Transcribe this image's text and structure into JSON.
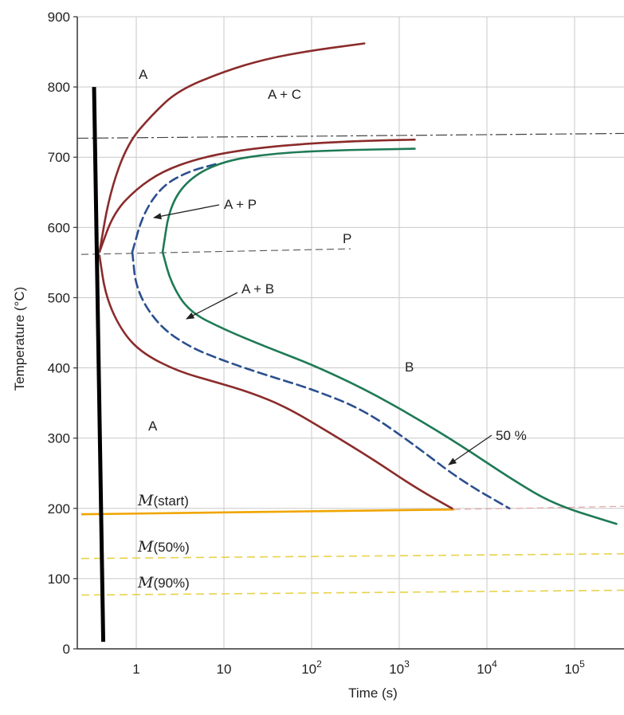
{
  "chart_data": {
    "type": "line",
    "title": "",
    "xlabel": "Time (s)",
    "ylabel": "Temperature (°C)",
    "x_scale": "log",
    "xlim": [
      0.3,
      500000
    ],
    "ylim": [
      0,
      900
    ],
    "grid": true,
    "x_ticks": [
      {
        "value": 1,
        "base": "1",
        "exp": ""
      },
      {
        "value": 10,
        "base": "10",
        "exp": ""
      },
      {
        "value": 100,
        "base": "10",
        "exp": "2"
      },
      {
        "value": 1000,
        "base": "10",
        "exp": "3"
      },
      {
        "value": 10000,
        "base": "10",
        "exp": "4"
      },
      {
        "value": 100000,
        "base": "10",
        "exp": "5"
      }
    ],
    "y_ticks": [
      "0",
      "100",
      "200",
      "300",
      "400",
      "500",
      "600",
      "700",
      "800",
      "900"
    ],
    "eutectoid_temperature": 727,
    "series": [
      {
        "name": "",
        "color": "#8b2b2b",
        "style": "solid",
        "points": [
          [
            0.38,
            565
          ],
          [
            0.5,
            650
          ],
          [
            0.8,
            720
          ],
          [
            1.5,
            760
          ],
          [
            3,
            795
          ],
          [
            10,
            822
          ],
          [
            30,
            840
          ],
          [
            100,
            852
          ],
          [
            400,
            862
          ]
        ]
      },
      {
        "name": "",
        "color": "#8b2b2b",
        "style": "solid",
        "points": [
          [
            0.38,
            565
          ],
          [
            0.55,
            620
          ],
          [
            1,
            655
          ],
          [
            2,
            680
          ],
          [
            5,
            698
          ],
          [
            15,
            710
          ],
          [
            60,
            718
          ],
          [
            300,
            723
          ],
          [
            1500,
            725
          ]
        ]
      },
      {
        "name": "",
        "color": "#8b2b2b",
        "style": "solid",
        "points": [
          [
            0.38,
            560
          ],
          [
            0.45,
            500
          ],
          [
            0.7,
            450
          ],
          [
            1.2,
            420
          ],
          [
            3,
            395
          ],
          [
            8,
            380
          ],
          [
            20,
            365
          ],
          [
            50,
            345
          ],
          [
            150,
            310
          ],
          [
            500,
            270
          ],
          [
            1500,
            230
          ],
          [
            4000,
            200
          ]
        ]
      },
      {
        "name": "",
        "color": "#2b4f8f",
        "style": "dashed",
        "points": [
          [
            0.9,
            565
          ],
          [
            1.2,
            620
          ],
          [
            2,
            660
          ],
          [
            4,
            680
          ],
          [
            8,
            690
          ]
        ]
      },
      {
        "name": "",
        "color": "#2b4f8f",
        "style": "dashed",
        "points": [
          [
            0.9,
            565
          ],
          [
            1,
            510
          ],
          [
            1.8,
            460
          ],
          [
            4,
            430
          ],
          [
            10,
            410
          ],
          [
            30,
            390
          ],
          [
            100,
            370
          ],
          [
            400,
            340
          ],
          [
            1500,
            290
          ],
          [
            5000,
            240
          ],
          [
            18000,
            200
          ]
        ]
      },
      {
        "name": "",
        "color": "#1e7a55",
        "style": "solid",
        "points": [
          [
            2,
            565
          ],
          [
            2.4,
            630
          ],
          [
            4,
            670
          ],
          [
            10,
            695
          ],
          [
            40,
            706
          ],
          [
            200,
            710
          ],
          [
            1500,
            712
          ]
        ]
      },
      {
        "name": "",
        "color": "#1e7a55",
        "style": "solid",
        "points": [
          [
            2,
            565
          ],
          [
            2.5,
            520
          ],
          [
            4,
            480
          ],
          [
            10,
            455
          ],
          [
            30,
            430
          ],
          [
            100,
            405
          ],
          [
            400,
            370
          ],
          [
            1500,
            330
          ],
          [
            5000,
            290
          ],
          [
            20000,
            240
          ],
          [
            60000,
            205
          ],
          [
            300000,
            178
          ]
        ]
      }
    ],
    "horizontal_lines": [
      {
        "name": "M(start)",
        "temperature": 195
      },
      {
        "name": "M(50%)",
        "temperature": 132
      },
      {
        "name": "M(90%)",
        "temperature": 80
      }
    ],
    "cooling_path": {
      "from": [
        0.33,
        800
      ],
      "to": [
        0.42,
        10
      ]
    },
    "annotations": {
      "A_top": "A",
      "A_plus_C": "A + C",
      "A_plus_P": "A + P",
      "P": "P",
      "A_plus_B": "A + B",
      "B": "B",
      "A_bottom": "A",
      "fifty_percent": "50 %",
      "m_start": {
        "sym": "M",
        "text": "(start)"
      },
      "m_50": {
        "sym": "M",
        "text": "(50%)"
      },
      "m_90": {
        "sym": "M",
        "text": "(90%)"
      }
    }
  }
}
